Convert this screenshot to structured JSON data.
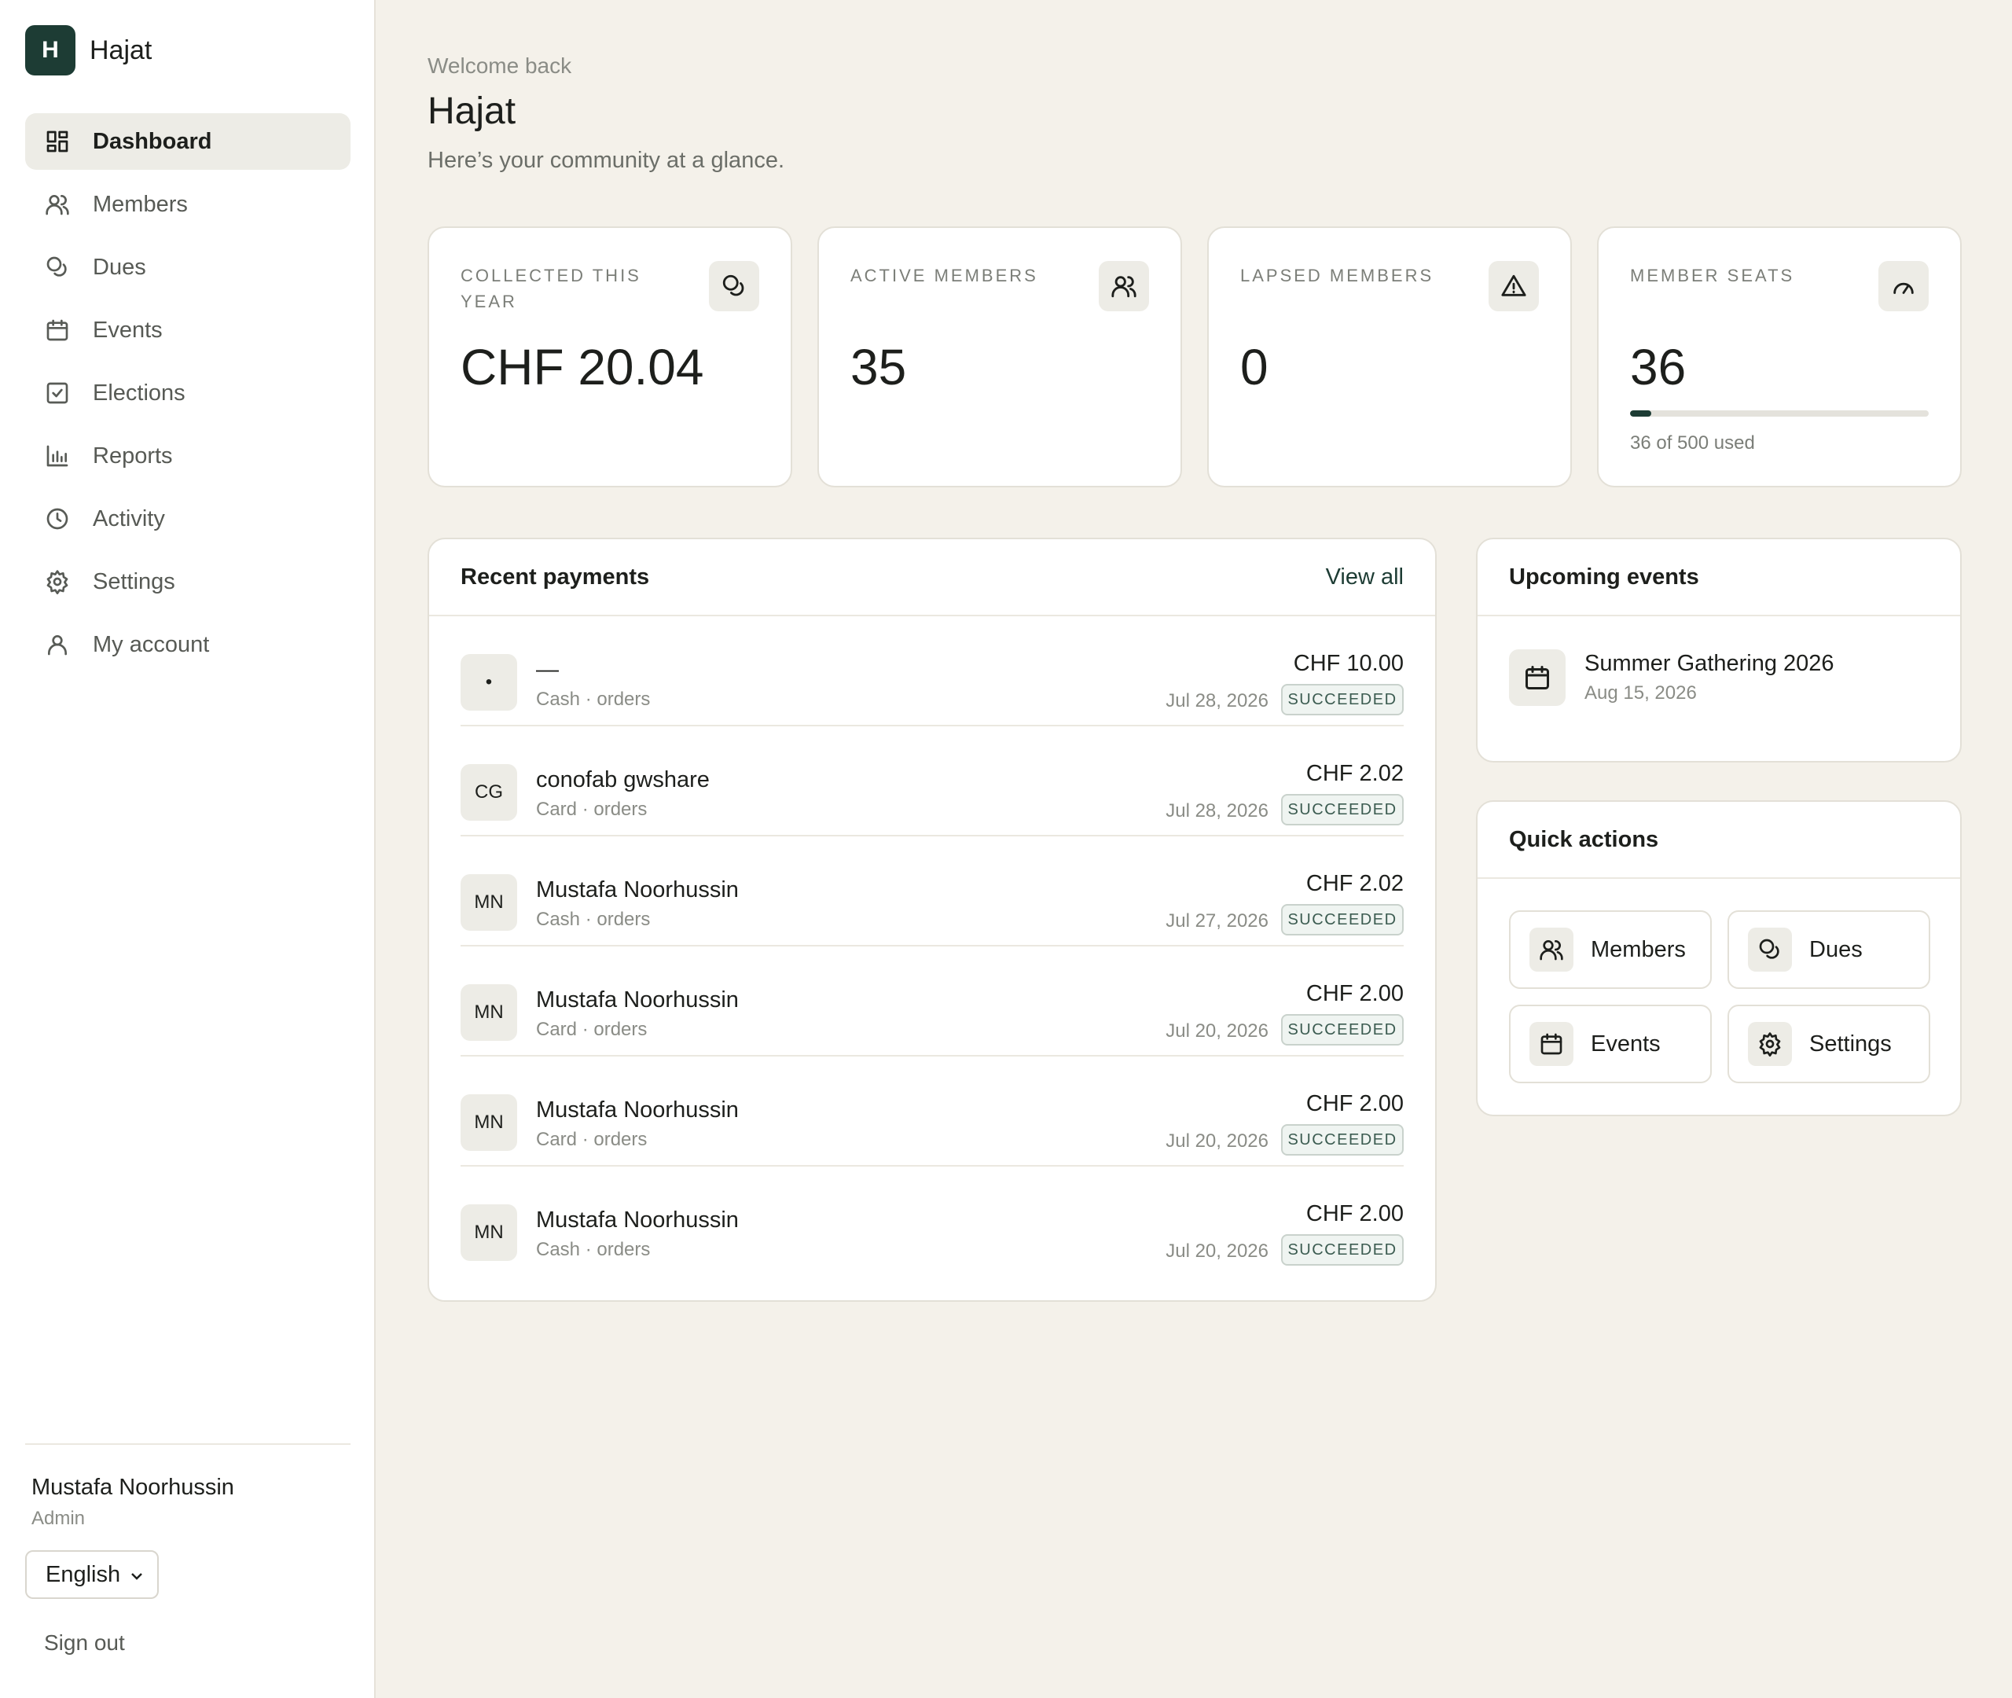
{
  "brand": {
    "initial": "H",
    "name": "Hajat"
  },
  "sidebar": {
    "items": [
      {
        "label": "Dashboard",
        "icon": "dashboard-icon",
        "active": true
      },
      {
        "label": "Members",
        "icon": "users-icon"
      },
      {
        "label": "Dues",
        "icon": "coins-icon"
      },
      {
        "label": "Events",
        "icon": "calendar-icon"
      },
      {
        "label": "Elections",
        "icon": "checkbox-icon"
      },
      {
        "label": "Reports",
        "icon": "bar-chart-icon"
      },
      {
        "label": "Activity",
        "icon": "clock-icon"
      },
      {
        "label": "Settings",
        "icon": "gear-icon"
      },
      {
        "label": "My account",
        "icon": "user-icon"
      }
    ],
    "user": {
      "name": "Mustafa Noorhussin",
      "role": "Admin"
    },
    "language": "English",
    "sign_out": "Sign out"
  },
  "header": {
    "welcome": "Welcome back",
    "title": "Hajat",
    "subtitle": "Here’s your community at a glance."
  },
  "stats": [
    {
      "label": "COLLECTED THIS YEAR",
      "value": "CHF 20.04",
      "icon": "coins-icon"
    },
    {
      "label": "ACTIVE MEMBERS",
      "value": "35",
      "icon": "users-icon"
    },
    {
      "label": "LAPSED MEMBERS",
      "value": "0",
      "icon": "warning-icon"
    },
    {
      "label": "MEMBER SEATS",
      "value": "36",
      "icon": "gauge-icon",
      "used_text": "36 of 500 used",
      "used_fraction": 0.072
    }
  ],
  "payments": {
    "title": "Recent payments",
    "view_all": "View all",
    "rows": [
      {
        "avatar": "•",
        "name": "—",
        "meta": "Cash · orders",
        "amount": "CHF 10.00",
        "date": "Jul 28, 2026",
        "status": "SUCCEEDED"
      },
      {
        "avatar": "CG",
        "name": "conofab gwshare",
        "meta": "Card · orders",
        "amount": "CHF 2.02",
        "date": "Jul 28, 2026",
        "status": "SUCCEEDED"
      },
      {
        "avatar": "MN",
        "name": "Mustafa Noorhussin",
        "meta": "Cash · orders",
        "amount": "CHF 2.02",
        "date": "Jul 27, 2026",
        "status": "SUCCEEDED"
      },
      {
        "avatar": "MN",
        "name": "Mustafa Noorhussin",
        "meta": "Card · orders",
        "amount": "CHF 2.00",
        "date": "Jul 20, 2026",
        "status": "SUCCEEDED"
      },
      {
        "avatar": "MN",
        "name": "Mustafa Noorhussin",
        "meta": "Card · orders",
        "amount": "CHF 2.00",
        "date": "Jul 20, 2026",
        "status": "SUCCEEDED"
      },
      {
        "avatar": "MN",
        "name": "Mustafa Noorhussin",
        "meta": "Cash · orders",
        "amount": "CHF 2.00",
        "date": "Jul 20, 2026",
        "status": "SUCCEEDED"
      }
    ]
  },
  "events": {
    "title": "Upcoming events",
    "items": [
      {
        "name": "Summer Gathering 2026",
        "date": "Aug 15, 2026"
      }
    ]
  },
  "quick_actions": {
    "title": "Quick actions",
    "items": [
      {
        "label": "Members",
        "icon": "users-icon"
      },
      {
        "label": "Dues",
        "icon": "coins-icon"
      },
      {
        "label": "Events",
        "icon": "calendar-icon"
      },
      {
        "label": "Settings",
        "icon": "gear-icon"
      }
    ]
  },
  "colors": {
    "accent": "#1d3c34",
    "background": "#f4f1ea",
    "badge_text": "#3c5c51"
  }
}
